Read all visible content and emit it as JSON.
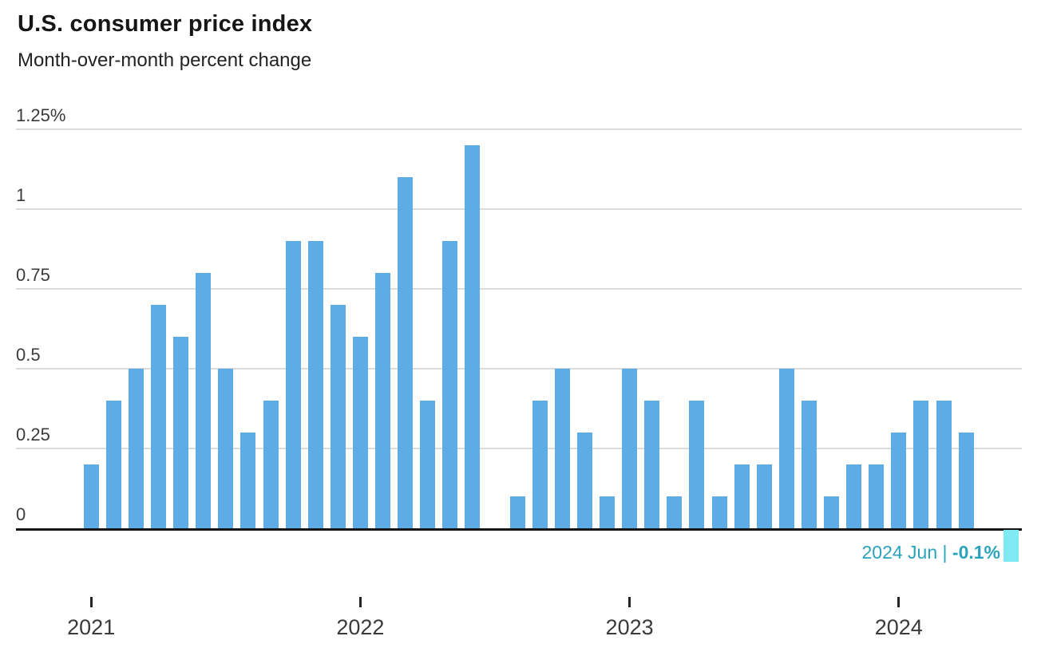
{
  "page": {
    "title": "U.S. consumer price index",
    "subtitle": "Month-over-month percent change"
  },
  "chart_data": {
    "type": "bar",
    "title": "U.S. consumer price index",
    "subtitle": "Month-over-month percent change",
    "xlabel": "",
    "ylabel": "",
    "unit": "percent",
    "ylim": [
      -0.15,
      1.25
    ],
    "grid": "horizontal",
    "legend": "none",
    "yticks": [
      {
        "label": "1.25%",
        "value": 1.25
      },
      {
        "label": "1",
        "value": 1.0
      },
      {
        "label": "0.75",
        "value": 0.75
      },
      {
        "label": "0.5",
        "value": 0.5
      },
      {
        "label": "0.25",
        "value": 0.25
      },
      {
        "label": "0",
        "value": 0
      }
    ],
    "xticks": [
      "2021",
      "2022",
      "2023",
      "2024"
    ],
    "categories": [
      "2021 Jan",
      "2021 Feb",
      "2021 Mar",
      "2021 Apr",
      "2021 May",
      "2021 Jun",
      "2021 Jul",
      "2021 Aug",
      "2021 Sep",
      "2021 Oct",
      "2021 Nov",
      "2021 Dec",
      "2022 Jan",
      "2022 Feb",
      "2022 Mar",
      "2022 Apr",
      "2022 May",
      "2022 Jun",
      "2022 Jul",
      "2022 Aug",
      "2022 Sep",
      "2022 Oct",
      "2022 Nov",
      "2022 Dec",
      "2023 Jan",
      "2023 Feb",
      "2023 Mar",
      "2023 Apr",
      "2023 May",
      "2023 Jun",
      "2023 Jul",
      "2023 Aug",
      "2023 Sep",
      "2023 Oct",
      "2023 Nov",
      "2023 Dec",
      "2024 Jan",
      "2024 Feb",
      "2024 Mar",
      "2024 Apr",
      "2024 May",
      "2024 Jun"
    ],
    "values": [
      0.2,
      0.4,
      0.5,
      0.7,
      0.6,
      0.8,
      0.5,
      0.3,
      0.4,
      0.9,
      0.9,
      0.7,
      0.6,
      0.8,
      1.1,
      0.4,
      0.9,
      1.2,
      0.0,
      0.1,
      0.4,
      0.5,
      0.3,
      0.1,
      0.5,
      0.4,
      0.1,
      0.4,
      0.1,
      0.2,
      0.2,
      0.5,
      0.4,
      0.1,
      0.2,
      0.2,
      0.3,
      0.4,
      0.4,
      0.3,
      0.0,
      -0.1
    ],
    "highlight": {
      "category": "2024 Jun",
      "value": -0.1,
      "annotation_prefix": "2024 Jun | ",
      "annotation_value": "-0.1%"
    },
    "colors": {
      "bar": "#5dace5",
      "highlight_bar": "#7fe9f4",
      "annotation_text": "#2aa3bc",
      "grid": "#dcdcdc",
      "axis": "#151515",
      "tick_text": "#3b3b3b",
      "title_text": "#161616"
    }
  }
}
